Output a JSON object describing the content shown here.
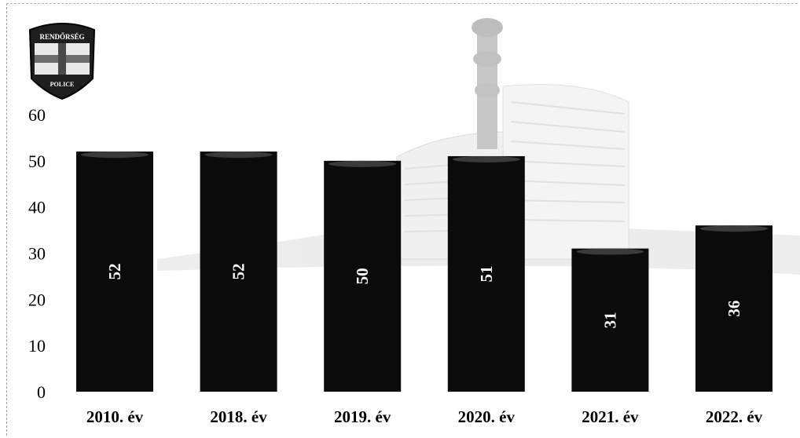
{
  "logo": {
    "top_text": "RENDŐRSÉG",
    "bottom_text": "POLICE"
  },
  "colors": {
    "bar": "#0b0b0b",
    "bar_top": "#3a3a3a",
    "axis_text": "#000000",
    "value_label": "#ffffff",
    "building": "#c4c4c4"
  },
  "chart_data": {
    "type": "bar",
    "title": "",
    "xlabel": "",
    "ylabel": "",
    "categories": [
      "2010. év",
      "2018. év",
      "2019. év",
      "2020. év",
      "2021. év",
      "2022. év"
    ],
    "values": [
      52,
      52,
      50,
      51,
      31,
      36
    ],
    "ylim": [
      0,
      60
    ],
    "yticks": [
      "0",
      "10",
      "20",
      "30",
      "40",
      "50",
      "60"
    ],
    "data_labels": [
      "52",
      "52",
      "50",
      "51",
      "31",
      "36"
    ],
    "data_label_orientation": "vertical",
    "grid": false,
    "legend": "none"
  }
}
